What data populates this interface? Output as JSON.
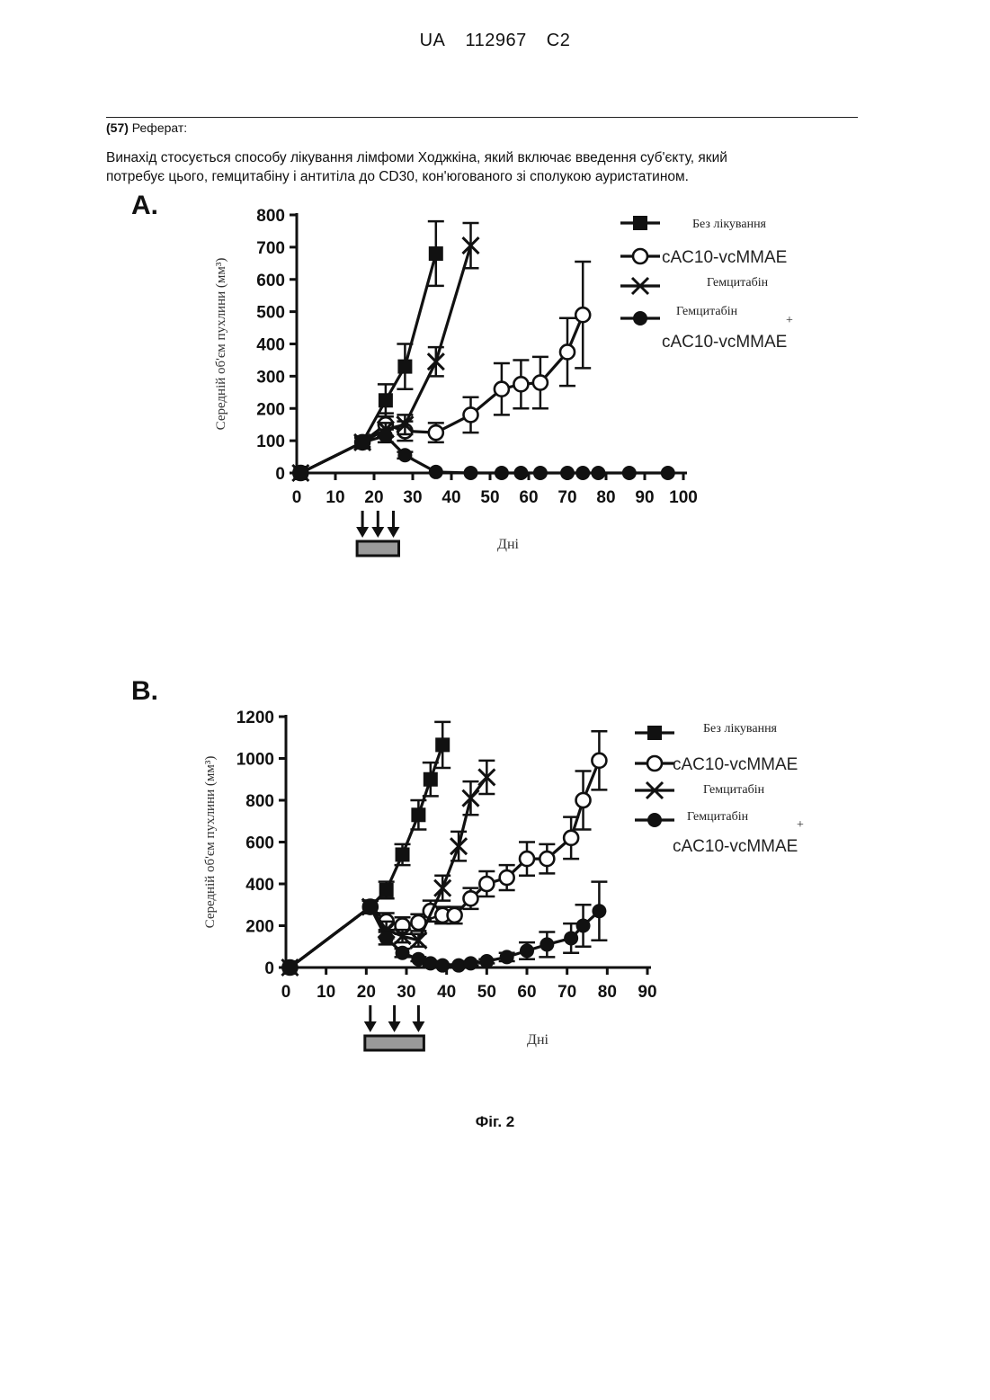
{
  "header": {
    "country": "UA",
    "number": "112967",
    "kind": "C2"
  },
  "section_label_num": "(57)",
  "section_label": "Реферат:",
  "abstract_line1": "Винахід стосується способу лікування лімфоми Ходжкіна, який включає введення суб'єкту, який",
  "abstract_line2": "потребує цього, гемцитабіну і антитіла до CD30, кон'югованого зі сполукою ауристатином.",
  "figure_caption": "Фіг. 2",
  "chart_data": [
    {
      "panel": "A.",
      "type": "line",
      "title": "",
      "xlabel": "Дні",
      "ylabel": "Середній об'єм пухлини (мм³)",
      "xlim": [
        0,
        100
      ],
      "ylim": [
        0,
        800
      ],
      "xticks": [
        0,
        10,
        20,
        30,
        40,
        50,
        60,
        70,
        80,
        90,
        100
      ],
      "yticks": [
        0,
        100,
        200,
        300,
        400,
        500,
        600,
        700,
        800
      ],
      "dosing_days": [
        17,
        21,
        25
      ],
      "legend": [
        "Без лікування",
        "cAC10-vcMMAE",
        "Гемцитабін",
        "Гемцитабін",
        "+",
        "cAC10-vcMMAE"
      ],
      "series": [
        {
          "name": "Без лікування",
          "marker": "filled-square",
          "x": [
            1,
            17,
            23,
            28,
            36
          ],
          "y": [
            0,
            95,
            225,
            330,
            680
          ],
          "err": [
            0,
            15,
            50,
            70,
            100
          ]
        },
        {
          "name": "cAC10-vcMMAE",
          "marker": "open-circle",
          "x": [
            1,
            17,
            23,
            28,
            36,
            45,
            53,
            58,
            63,
            70,
            74
          ],
          "y": [
            0,
            95,
            150,
            130,
            125,
            180,
            260,
            275,
            280,
            375,
            490
          ],
          "err": [
            0,
            15,
            35,
            30,
            30,
            55,
            80,
            75,
            80,
            105,
            165
          ]
        },
        {
          "name": "Гемцитабін",
          "marker": "x",
          "x": [
            1,
            17,
            23,
            28,
            36,
            45
          ],
          "y": [
            0,
            95,
            135,
            150,
            345,
            705
          ],
          "err": [
            0,
            15,
            20,
            30,
            45,
            70
          ]
        },
        {
          "name": "Гемцитабін + cAC10-vcMMAE",
          "marker": "filled-circle",
          "x": [
            1,
            17,
            23,
            28,
            36,
            45,
            53,
            58,
            63,
            70,
            74,
            78,
            86,
            96
          ],
          "y": [
            0,
            95,
            115,
            55,
            3,
            0,
            0,
            0,
            0,
            0,
            0,
            0,
            0,
            0
          ],
          "err": [
            0,
            15,
            20,
            10,
            0,
            0,
            0,
            0,
            0,
            0,
            0,
            0,
            0,
            0
          ]
        }
      ]
    },
    {
      "panel": "B.",
      "type": "line",
      "title": "",
      "xlabel": "Дні",
      "ylabel": "Середній об'єм пухлини (мм³)",
      "xlim": [
        0,
        90
      ],
      "ylim": [
        0,
        1200
      ],
      "xticks": [
        0,
        10,
        20,
        30,
        40,
        50,
        60,
        70,
        80,
        90
      ],
      "yticks": [
        0,
        200,
        400,
        600,
        800,
        1000,
        1200
      ],
      "dosing_days": [
        21,
        27,
        33
      ],
      "legend": [
        "Без лікування",
        "cAC10-vcMMAE",
        "Гемцитабін",
        "Гемцитабін",
        "+",
        "cAC10-vcMMAE"
      ],
      "series": [
        {
          "name": "Без лікування",
          "marker": "filled-square",
          "x": [
            1,
            21,
            25,
            29,
            33,
            36,
            39
          ],
          "y": [
            0,
            290,
            370,
            540,
            730,
            900,
            1065
          ],
          "err": [
            0,
            30,
            40,
            50,
            70,
            80,
            110
          ]
        },
        {
          "name": "cAC10-vcMMAE",
          "marker": "open-circle",
          "x": [
            1,
            21,
            25,
            29,
            33,
            36,
            39,
            42,
            46,
            50,
            55,
            60,
            65,
            71,
            74,
            78
          ],
          "y": [
            0,
            290,
            220,
            200,
            215,
            270,
            250,
            250,
            330,
            400,
            430,
            520,
            520,
            620,
            800,
            990
          ],
          "err": [
            0,
            30,
            40,
            40,
            40,
            50,
            40,
            40,
            50,
            60,
            60,
            80,
            70,
            100,
            140,
            140
          ]
        },
        {
          "name": "Гемцитабін",
          "marker": "x",
          "x": [
            1,
            21,
            25,
            29,
            33,
            39,
            43,
            46,
            50
          ],
          "y": [
            0,
            290,
            180,
            150,
            130,
            380,
            580,
            810,
            910
          ],
          "err": [
            0,
            30,
            40,
            30,
            30,
            60,
            70,
            80,
            80
          ]
        },
        {
          "name": "Гемцитабін + cAC10-vcMMAE",
          "marker": "filled-circle",
          "x": [
            1,
            21,
            25,
            29,
            33,
            36,
            39,
            43,
            46,
            50,
            55,
            60,
            65,
            71,
            74,
            78
          ],
          "y": [
            0,
            290,
            140,
            70,
            40,
            20,
            10,
            10,
            20,
            30,
            50,
            80,
            110,
            140,
            200,
            270
          ],
          "err": [
            0,
            30,
            30,
            20,
            10,
            10,
            5,
            5,
            10,
            10,
            20,
            40,
            60,
            70,
            100,
            140
          ]
        }
      ]
    }
  ]
}
